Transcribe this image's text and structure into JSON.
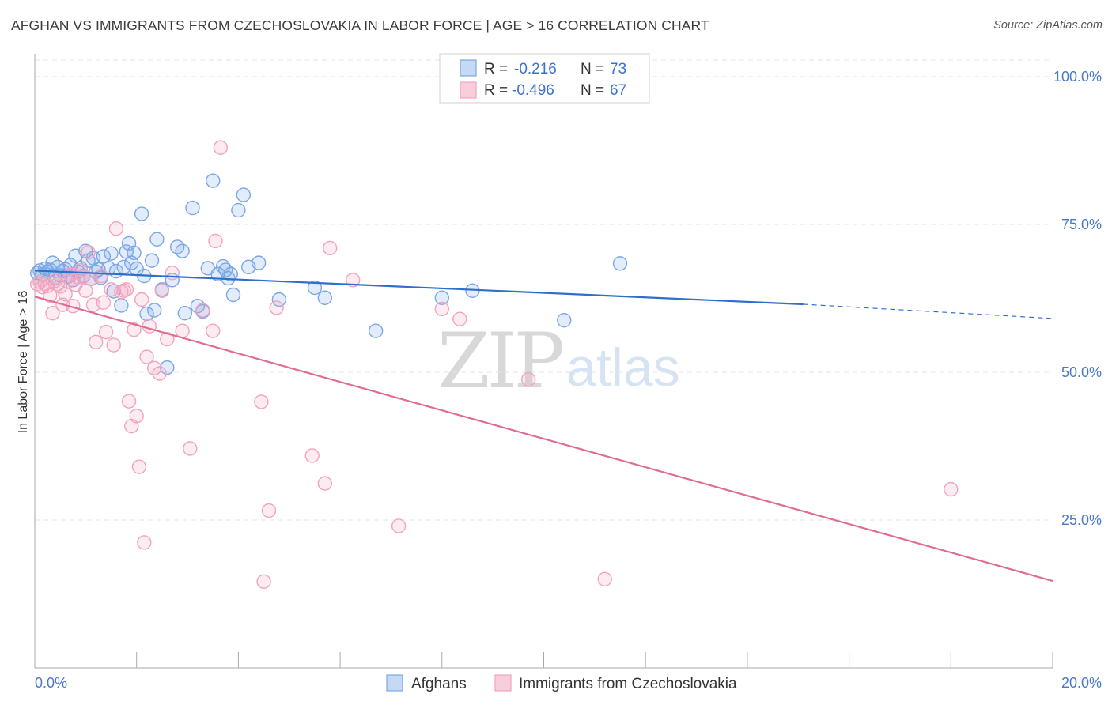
{
  "title": "AFGHAN VS IMMIGRANTS FROM CZECHOSLOVAKIA IN LABOR FORCE | AGE > 16 CORRELATION CHART",
  "source": "Source: ZipAtlas.com",
  "watermark": {
    "zip": "ZIP",
    "atlas": "atlas"
  },
  "colors": {
    "afghans": "#7ba7e6",
    "afghans_line": "#2f6fcc",
    "czech": "#f2a3bd",
    "czech_line": "#e06b94",
    "tick_text": "#4a78c8",
    "grid": "#e4e4e4"
  },
  "stats": [
    {
      "r_label": "R =",
      "r_value": "-0.216",
      "n_label": "N =",
      "n_value": "73",
      "series": "afghans"
    },
    {
      "r_label": "R =",
      "r_value": "-0.496",
      "n_label": "N =",
      "n_value": "67",
      "series": "czech"
    }
  ],
  "chart_data": {
    "type": "scatter",
    "title": "AFGHAN VS IMMIGRANTS FROM CZECHOSLOVAKIA IN LABOR FORCE | AGE > 16 CORRELATION CHART",
    "xlabel": "",
    "ylabel": "In Labor Force | Age > 16",
    "xlim": [
      0,
      20
    ],
    "ylim": [
      0,
      105
    ],
    "x_ticks": [
      "0.0%",
      "20.0%"
    ],
    "y_ticks": [
      {
        "value": 100,
        "label": "100.0%"
      },
      {
        "value": 75,
        "label": "75.0%"
      },
      {
        "value": 50,
        "label": "50.0%"
      },
      {
        "value": 25,
        "label": "25.0%"
      }
    ],
    "grid": true,
    "legend_position": "bottom-center",
    "series": [
      {
        "name": "Afghans",
        "color": "#7ba7e6",
        "trend": {
          "x0": 0,
          "y0": 67.2,
          "x1": 15.1,
          "y1": 61.5,
          "dash_to_x": 20,
          "dash_to_y": 59.1
        },
        "points": [
          [
            0.05,
            66.8
          ],
          [
            0.1,
            67.2
          ],
          [
            0.15,
            66.5
          ],
          [
            0.2,
            67.5
          ],
          [
            0.25,
            67.0
          ],
          [
            0.3,
            67.3
          ],
          [
            0.35,
            68.5
          ],
          [
            0.4,
            66.0
          ],
          [
            0.45,
            67.8
          ],
          [
            0.5,
            66.4
          ],
          [
            0.55,
            67.1
          ],
          [
            0.6,
            67.4
          ],
          [
            0.65,
            66.2
          ],
          [
            0.7,
            68.1
          ],
          [
            0.75,
            65.6
          ],
          [
            0.8,
            69.7
          ],
          [
            0.85,
            67.0
          ],
          [
            0.9,
            67.6
          ],
          [
            0.95,
            66.3
          ],
          [
            1.0,
            70.5
          ],
          [
            1.05,
            68.9
          ],
          [
            1.1,
            65.8
          ],
          [
            1.15,
            69.3
          ],
          [
            1.2,
            67.0
          ],
          [
            1.25,
            67.4
          ],
          [
            1.3,
            66.0
          ],
          [
            1.35,
            69.6
          ],
          [
            1.45,
            67.6
          ],
          [
            1.5,
            70.1
          ],
          [
            1.55,
            63.7
          ],
          [
            1.6,
            67.1
          ],
          [
            1.7,
            61.3
          ],
          [
            1.75,
            67.8
          ],
          [
            1.8,
            70.4
          ],
          [
            1.85,
            71.8
          ],
          [
            1.9,
            68.5
          ],
          [
            1.95,
            70.2
          ],
          [
            2.0,
            67.5
          ],
          [
            2.1,
            76.8
          ],
          [
            2.15,
            66.3
          ],
          [
            2.2,
            59.9
          ],
          [
            2.3,
            68.9
          ],
          [
            2.35,
            60.5
          ],
          [
            2.4,
            72.5
          ],
          [
            2.5,
            64.0
          ],
          [
            2.6,
            50.8
          ],
          [
            2.7,
            65.6
          ],
          [
            2.8,
            71.2
          ],
          [
            2.9,
            70.5
          ],
          [
            2.95,
            60.0
          ],
          [
            3.1,
            77.8
          ],
          [
            3.2,
            61.2
          ],
          [
            3.3,
            60.3
          ],
          [
            3.4,
            67.6
          ],
          [
            3.5,
            82.4
          ],
          [
            3.6,
            66.6
          ],
          [
            3.7,
            67.9
          ],
          [
            3.75,
            67.3
          ],
          [
            3.8,
            65.9
          ],
          [
            3.85,
            66.6
          ],
          [
            3.9,
            63.1
          ],
          [
            4.0,
            77.4
          ],
          [
            4.1,
            80.0
          ],
          [
            4.2,
            67.8
          ],
          [
            4.4,
            68.5
          ],
          [
            4.8,
            62.3
          ],
          [
            5.5,
            64.3
          ],
          [
            5.7,
            62.6
          ],
          [
            6.7,
            57.0
          ],
          [
            8.0,
            62.6
          ],
          [
            8.6,
            63.8
          ],
          [
            10.4,
            58.8
          ],
          [
            11.5,
            68.4
          ]
        ]
      },
      {
        "name": "Immigrants from Czechoslovakia",
        "color": "#f2a3bd",
        "trend": {
          "x0": 0,
          "y0": 62.8,
          "x1": 20,
          "y1": 14.7
        },
        "points": [
          [
            0.05,
            64.9
          ],
          [
            0.1,
            65.3
          ],
          [
            0.15,
            64.4
          ],
          [
            0.2,
            65.0
          ],
          [
            0.25,
            64.6
          ],
          [
            0.3,
            63.0
          ],
          [
            0.35,
            60.0
          ],
          [
            0.4,
            65.5
          ],
          [
            0.45,
            64.9
          ],
          [
            0.5,
            64.5
          ],
          [
            0.55,
            61.4
          ],
          [
            0.6,
            63.2
          ],
          [
            0.65,
            65.3
          ],
          [
            0.7,
            66.5
          ],
          [
            0.75,
            61.2
          ],
          [
            0.8,
            64.8
          ],
          [
            0.85,
            66.1
          ],
          [
            0.9,
            67.2
          ],
          [
            0.95,
            66.2
          ],
          [
            1.0,
            63.8
          ],
          [
            1.05,
            70.3
          ],
          [
            1.1,
            65.8
          ],
          [
            1.15,
            61.4
          ],
          [
            1.2,
            55.1
          ],
          [
            1.3,
            66.3
          ],
          [
            1.35,
            61.8
          ],
          [
            1.4,
            56.8
          ],
          [
            1.5,
            64.0
          ],
          [
            1.55,
            54.6
          ],
          [
            1.6,
            74.3
          ],
          [
            1.7,
            63.6
          ],
          [
            1.75,
            63.8
          ],
          [
            1.8,
            64.0
          ],
          [
            1.85,
            45.1
          ],
          [
            1.9,
            40.9
          ],
          [
            1.95,
            57.2
          ],
          [
            2.0,
            42.6
          ],
          [
            2.05,
            34.0
          ],
          [
            2.1,
            62.3
          ],
          [
            2.15,
            21.2
          ],
          [
            2.2,
            52.6
          ],
          [
            2.25,
            57.8
          ],
          [
            2.35,
            50.7
          ],
          [
            2.45,
            49.8
          ],
          [
            2.5,
            63.8
          ],
          [
            2.6,
            55.6
          ],
          [
            2.7,
            66.8
          ],
          [
            2.9,
            57.0
          ],
          [
            3.05,
            37.1
          ],
          [
            3.3,
            60.5
          ],
          [
            3.5,
            57.0
          ],
          [
            3.55,
            72.2
          ],
          [
            3.65,
            88.0
          ],
          [
            4.45,
            45.0
          ],
          [
            4.5,
            14.6
          ],
          [
            4.6,
            26.6
          ],
          [
            4.75,
            60.9
          ],
          [
            5.45,
            35.9
          ],
          [
            5.7,
            31.2
          ],
          [
            5.8,
            71.0
          ],
          [
            6.25,
            65.6
          ],
          [
            7.15,
            24.0
          ],
          [
            8.0,
            60.7
          ],
          [
            8.35,
            59.0
          ],
          [
            9.7,
            48.8
          ],
          [
            11.2,
            15.0
          ],
          [
            18.0,
            30.2
          ]
        ]
      }
    ]
  },
  "legend": [
    {
      "label": "Afghans",
      "series": "afghans"
    },
    {
      "label": "Immigrants from Czechoslovakia",
      "series": "czech"
    }
  ]
}
